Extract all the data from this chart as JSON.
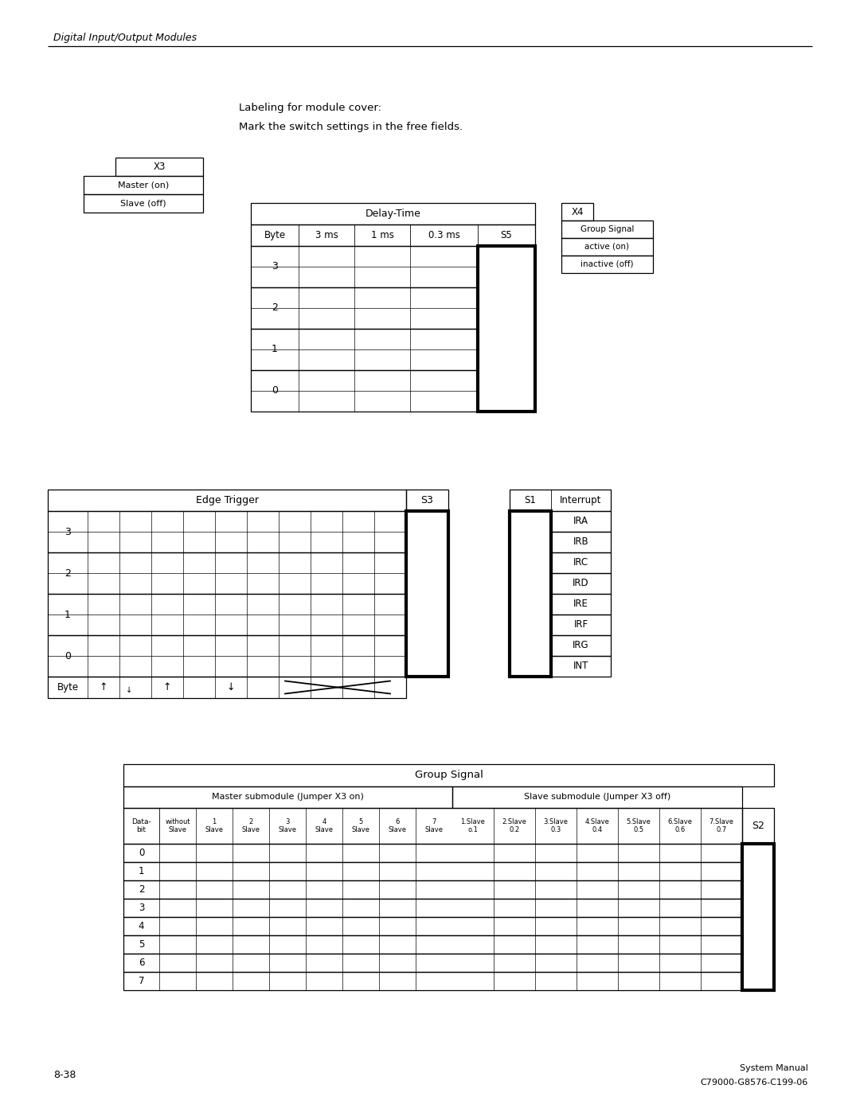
{
  "title_italic": "Digital Input/Output Modules",
  "subtitle_line1": "Labeling for module cover:",
  "subtitle_line2": "Mark the switch settings in the free fields.",
  "page_number": "8-38",
  "manual_ref_line1": "System Manual",
  "manual_ref_line2": "C79000-G8576-C199-06",
  "x3_label": "X3",
  "x3_rows": [
    "Master (on)",
    "Slave (off)"
  ],
  "delay_time_title": "Delay-Time",
  "delay_time_headers": [
    "Byte",
    "3 ms",
    "1 ms",
    "0.3 ms",
    "S5"
  ],
  "delay_time_rows": [
    "3",
    "2",
    "1",
    "0"
  ],
  "x4_label": "X4",
  "x4_rows": [
    "Group Signal",
    "active (on)",
    "inactive (off)"
  ],
  "edge_trigger_title": "Edge Trigger",
  "edge_trigger_s3": "S3",
  "s1_label": "S1",
  "s1_interrupt": "Interrupt",
  "s1_rows": [
    "IRA",
    "IRB",
    "IRC",
    "IRD",
    "IRE",
    "IRF",
    "IRG",
    "INT"
  ],
  "group_signal_title": "Group Signal",
  "master_submodule_label": "Master submodule (Jumper X3 on)",
  "slave_submodule_label": "Slave submodule (Jumper X3 off)",
  "gs_master_headers": [
    "without\nSlave",
    "1\nSlave",
    "2\nSlave",
    "3\nSlave",
    "4\nSlave",
    "5\nSlave",
    "6\nSlave",
    "7\nSlave"
  ],
  "gs_slave_headers": [
    "1.Slave\no.1",
    "2.Slave\n0.2",
    "3.Slave\n0.3",
    "4.Slave\n0.4",
    "5.Slave\n0.5",
    "6.Slave\n0.6",
    "7.Slave\n0.7"
  ],
  "gs_s2": "S2",
  "gs_rows": [
    "0",
    "1",
    "2",
    "3",
    "4",
    "5",
    "6",
    "7"
  ],
  "bg_color": "#ffffff"
}
